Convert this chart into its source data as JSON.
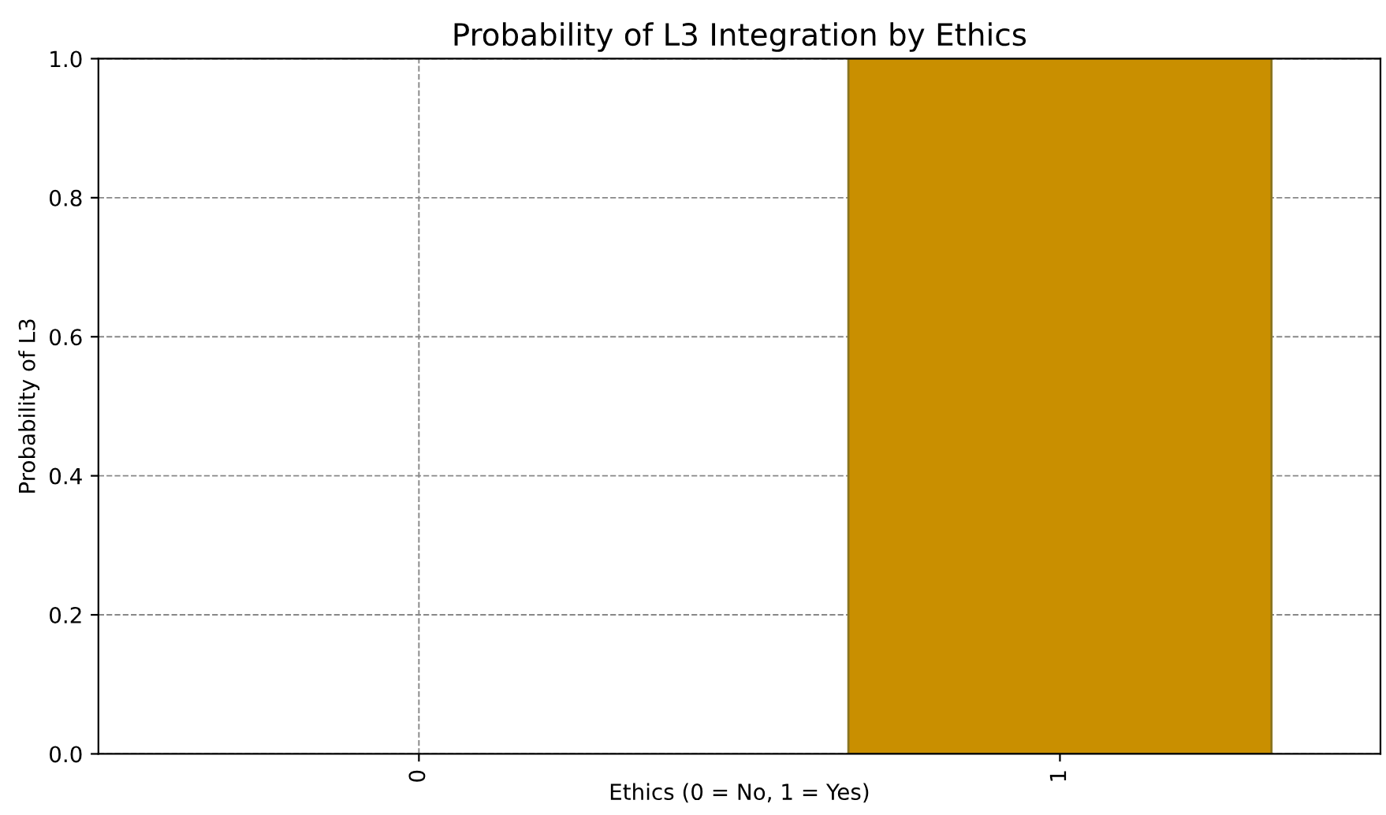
{
  "chart_data": {
    "type": "bar",
    "title": "Probability of L3 Integration by Ethics",
    "xlabel": "Ethics (0 = No, 1 = Yes)",
    "ylabel": "Probability of L3",
    "categories": [
      "0",
      "1"
    ],
    "values": [
      0,
      1
    ],
    "color": "#c98f00",
    "ylim": [
      0,
      1
    ],
    "yticks": [
      {
        "value": 0,
        "label": "0.0"
      },
      {
        "value": 0.2,
        "label": "0.2"
      },
      {
        "value": 0.4,
        "label": "0.4"
      },
      {
        "value": 0.6,
        "label": "0.6"
      },
      {
        "value": 0.8,
        "label": "0.8"
      },
      {
        "value": 1,
        "label": "1.0"
      }
    ],
    "grid": true,
    "line_style": "dashed"
  }
}
